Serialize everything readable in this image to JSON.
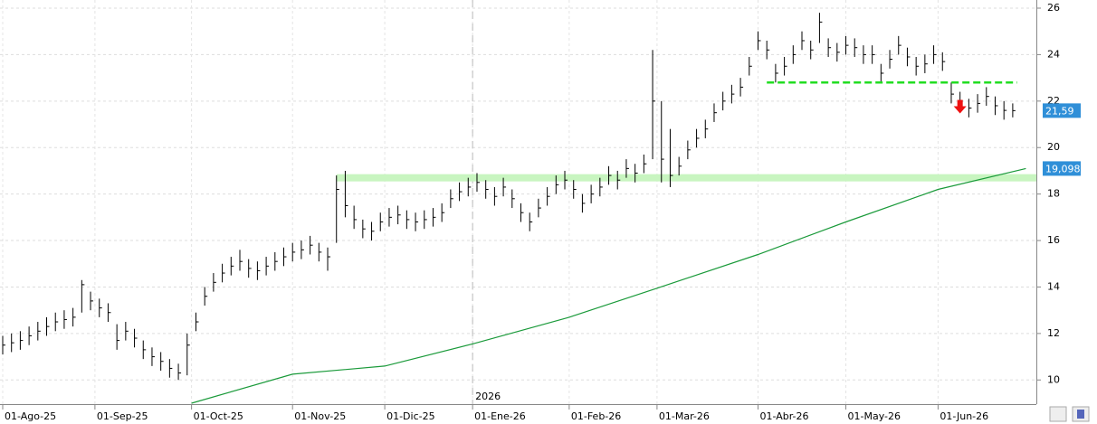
{
  "chart_data": {
    "type": "ohlc",
    "color": "#000000",
    "xlim": [
      0,
      118
    ],
    "xticks": [
      {
        "value": 0,
        "label": "01-Ago-25"
      },
      {
        "value": 10.5,
        "label": "01-Sep-25"
      },
      {
        "value": 21.5,
        "label": "01-Oct-25"
      },
      {
        "value": 33,
        "label": "01-Nov-25"
      },
      {
        "value": 43.5,
        "label": "01-Dic-25"
      },
      {
        "value": 53.5,
        "label": "01-Ene-26"
      },
      {
        "value": 64.5,
        "label": "01-Feb-26"
      },
      {
        "value": 74.5,
        "label": "01-Mar-26"
      },
      {
        "value": 86,
        "label": "01-Abr-26"
      },
      {
        "value": 96,
        "label": "01-May-26"
      },
      {
        "value": 106.5,
        "label": "01-Jun-26"
      }
    ],
    "year_marker": {
      "value": 53.5,
      "label": "2026"
    },
    "ylim": [
      9,
      26.35
    ],
    "yticks": [
      10,
      12,
      14,
      16,
      18,
      20,
      22,
      24,
      26
    ],
    "grid": true,
    "high": [
      11.9,
      12.0,
      12.1,
      12.3,
      12.5,
      12.7,
      12.9,
      13.0,
      13.1,
      14.3,
      13.8,
      13.5,
      13.3,
      12.4,
      12.5,
      12.2,
      11.7,
      11.4,
      11.2,
      10.9,
      10.7,
      12.0,
      12.9,
      14.0,
      14.6,
      15.0,
      15.3,
      15.6,
      15.2,
      15.1,
      15.3,
      15.5,
      15.7,
      15.9,
      16.0,
      16.2,
      15.9,
      15.7,
      18.8,
      19.0,
      17.5,
      16.9,
      16.8,
      17.2,
      17.4,
      17.5,
      17.3,
      17.2,
      17.3,
      17.4,
      17.6,
      18.2,
      18.5,
      18.7,
      18.9,
      18.6,
      18.3,
      18.7,
      18.2,
      17.6,
      17.2,
      17.8,
      18.3,
      18.8,
      19.0,
      18.6,
      18.0,
      18.4,
      18.7,
      19.2,
      19.0,
      19.5,
      19.3,
      19.7,
      24.2,
      22.0,
      20.8,
      19.6,
      20.3,
      20.8,
      21.2,
      21.9,
      22.4,
      22.7,
      23.0,
      23.9,
      25.0,
      24.6,
      23.6,
      23.9,
      24.4,
      25.0,
      24.6,
      25.8,
      24.7,
      24.5,
      24.8,
      24.7,
      24.4,
      24.4,
      23.6,
      24.2,
      24.8,
      24.3,
      23.9,
      24.0,
      24.4,
      24.1,
      22.8,
      22.4,
      22.1,
      22.3,
      22.6,
      22.2,
      22.0,
      21.9
    ],
    "low": [
      11.1,
      11.2,
      11.3,
      11.5,
      11.7,
      11.9,
      12.1,
      12.2,
      12.3,
      12.9,
      13.0,
      12.7,
      12.5,
      11.3,
      11.7,
      11.4,
      10.9,
      10.6,
      10.4,
      10.1,
      10.0,
      10.2,
      12.1,
      13.2,
      13.8,
      14.2,
      14.5,
      14.7,
      14.4,
      14.3,
      14.5,
      14.7,
      14.9,
      15.1,
      15.2,
      15.4,
      15.1,
      14.7,
      15.9,
      17.0,
      16.5,
      16.1,
      16.0,
      16.4,
      16.6,
      16.7,
      16.5,
      16.4,
      16.5,
      16.6,
      16.8,
      17.4,
      17.7,
      17.9,
      18.1,
      17.8,
      17.5,
      17.9,
      17.4,
      16.8,
      16.4,
      17.0,
      17.5,
      18.0,
      18.2,
      17.8,
      17.2,
      17.6,
      17.9,
      18.4,
      18.2,
      18.7,
      18.5,
      18.9,
      19.5,
      18.5,
      18.3,
      18.8,
      19.5,
      20.0,
      20.4,
      21.1,
      21.6,
      21.9,
      22.2,
      23.1,
      24.2,
      23.8,
      22.8,
      23.1,
      23.6,
      24.2,
      23.8,
      24.5,
      23.9,
      23.7,
      24.0,
      23.9,
      23.6,
      23.6,
      22.8,
      23.4,
      24.0,
      23.5,
      23.1,
      23.2,
      23.6,
      23.3,
      21.9,
      21.6,
      21.3,
      21.5,
      21.8,
      21.4,
      21.2,
      21.3
    ],
    "close": [
      11.5,
      11.6,
      11.7,
      11.9,
      12.1,
      12.3,
      12.5,
      12.6,
      12.7,
      14.1,
      13.4,
      13.1,
      12.9,
      11.7,
      12.1,
      11.8,
      11.3,
      11.0,
      10.8,
      10.5,
      10.3,
      11.5,
      12.5,
      13.6,
      14.2,
      14.6,
      14.9,
      15.1,
      14.8,
      14.7,
      14.9,
      15.1,
      15.3,
      15.5,
      15.6,
      15.8,
      15.5,
      15.3,
      18.2,
      17.5,
      16.9,
      16.5,
      16.4,
      16.8,
      17.0,
      17.1,
      16.9,
      16.8,
      16.9,
      17.0,
      17.2,
      17.8,
      18.1,
      18.3,
      18.5,
      18.2,
      17.9,
      18.3,
      17.8,
      17.2,
      16.8,
      17.4,
      17.9,
      18.4,
      18.6,
      18.2,
      17.6,
      18.0,
      18.3,
      18.8,
      18.6,
      19.1,
      18.9,
      19.3,
      22.0,
      19.5,
      18.8,
      19.2,
      19.9,
      20.4,
      20.8,
      21.5,
      22.0,
      22.3,
      22.6,
      23.5,
      24.6,
      24.2,
      23.2,
      23.5,
      24.0,
      24.6,
      24.2,
      25.4,
      24.3,
      24.1,
      24.4,
      24.3,
      24.0,
      24.0,
      23.2,
      23.8,
      24.4,
      23.9,
      23.5,
      23.6,
      24.0,
      23.7,
      22.3,
      22.0,
      21.7,
      21.9,
      22.2,
      21.8,
      21.6,
      21.59
    ],
    "last_label": {
      "value": 21.59,
      "label": "21,59"
    },
    "moving_average": {
      "color": "#1a9a3a",
      "x": [
        21.5,
        33,
        43.5,
        53.5,
        64.5,
        74.5,
        86,
        96,
        106.5,
        116.5
      ],
      "values": [
        9.0,
        10.25,
        10.6,
        11.55,
        12.7,
        13.95,
        15.4,
        16.8,
        18.2,
        19.098
      ],
      "last_label": {
        "value": 19.098,
        "label": "19,098"
      }
    },
    "resistance_band": {
      "color": "#c8f5c0",
      "value": 18.7,
      "xlim": [
        38,
        118
      ]
    },
    "support_line": {
      "color": "#22dd22",
      "value": 22.8,
      "xlim": [
        87,
        115.5
      ]
    },
    "signal_arrow": {
      "color": "#ee1111",
      "x": 109,
      "value": 21.7
    }
  }
}
